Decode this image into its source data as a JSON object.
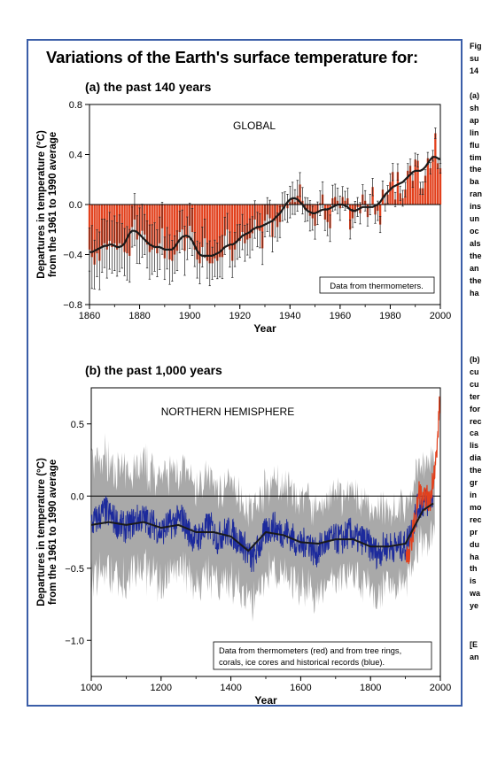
{
  "figure": {
    "title": "Variations of the Earth's surface temperature for:"
  },
  "side_text": {
    "caption_lines": [
      "Fig",
      "su",
      "14"
    ],
    "body_lines": [
      "(a)",
      "sh",
      "ap",
      "lin",
      "flu",
      "tim",
      "the",
      "ba",
      "ran",
      "ins",
      "un",
      "oc",
      "als",
      "the",
      "an",
      "the",
      "ha"
    ],
    "body_lines_b": [
      "(b)",
      "cu",
      "cu",
      "ter",
      "for",
      "rec",
      "ca",
      "lis",
      "dia",
      "the",
      "gr",
      "in",
      "mo",
      "rec",
      "pr",
      "du",
      "ha",
      "th",
      "is",
      "wa",
      "ye"
    ],
    "footer_lines": [
      "[E",
      "an"
    ]
  },
  "chart_data": [
    {
      "type": "bar",
      "subtitle": "(a) the past 140 years",
      "region_label": "GLOBAL",
      "xlabel": "Year",
      "ylabel_line1": "Departures in temperature (°C)",
      "ylabel_line2": "from the 1961 to 1990 average",
      "xlim": [
        1860,
        2000
      ],
      "ylim": [
        -0.8,
        0.8
      ],
      "x_ticks": [
        1860,
        1880,
        1900,
        1920,
        1940,
        1960,
        1980,
        2000
      ],
      "y_ticks": [
        "0.8",
        "0.4",
        "0.0",
        "−0.4",
        "−0.8"
      ],
      "y_tick_values": [
        0.8,
        0.4,
        0.0,
        -0.4,
        -0.8
      ],
      "legend": "Data from thermometers.",
      "grid": false,
      "colors": {
        "bars": "#e2401c",
        "trend": "#1a1a1a",
        "errorbars": "#222222",
        "zero_line": "#000000"
      },
      "x": [
        1860,
        1861,
        1862,
        1863,
        1864,
        1865,
        1866,
        1867,
        1868,
        1869,
        1870,
        1871,
        1872,
        1873,
        1874,
        1875,
        1876,
        1877,
        1878,
        1879,
        1880,
        1881,
        1882,
        1883,
        1884,
        1885,
        1886,
        1887,
        1888,
        1889,
        1890,
        1891,
        1892,
        1893,
        1894,
        1895,
        1896,
        1897,
        1898,
        1899,
        1900,
        1901,
        1902,
        1903,
        1904,
        1905,
        1906,
        1907,
        1908,
        1909,
        1910,
        1911,
        1912,
        1913,
        1914,
        1915,
        1916,
        1917,
        1918,
        1919,
        1920,
        1921,
        1922,
        1923,
        1924,
        1925,
        1926,
        1927,
        1928,
        1929,
        1930,
        1931,
        1932,
        1933,
        1934,
        1935,
        1936,
        1937,
        1938,
        1939,
        1940,
        1941,
        1942,
        1943,
        1944,
        1945,
        1946,
        1947,
        1948,
        1949,
        1950,
        1951,
        1952,
        1953,
        1954,
        1955,
        1956,
        1957,
        1958,
        1959,
        1960,
        1961,
        1962,
        1963,
        1964,
        1965,
        1966,
        1967,
        1968,
        1969,
        1970,
        1971,
        1972,
        1973,
        1974,
        1975,
        1976,
        1977,
        1978,
        1979,
        1980,
        1981,
        1982,
        1983,
        1984,
        1985,
        1986,
        1987,
        1988,
        1989,
        1990,
        1991,
        1992,
        1993,
        1994,
        1995,
        1996,
        1997,
        1998,
        1999,
        2000
      ],
      "values": [
        -0.36,
        -0.42,
        -0.48,
        -0.39,
        -0.45,
        -0.33,
        -0.31,
        -0.36,
        -0.29,
        -0.34,
        -0.31,
        -0.36,
        -0.31,
        -0.33,
        -0.38,
        -0.39,
        -0.41,
        -0.18,
        -0.12,
        -0.28,
        -0.25,
        -0.21,
        -0.24,
        -0.32,
        -0.38,
        -0.36,
        -0.34,
        -0.39,
        -0.31,
        -0.19,
        -0.43,
        -0.35,
        -0.44,
        -0.45,
        -0.4,
        -0.37,
        -0.22,
        -0.2,
        -0.37,
        -0.27,
        -0.17,
        -0.22,
        -0.36,
        -0.44,
        -0.47,
        -0.34,
        -0.27,
        -0.45,
        -0.47,
        -0.47,
        -0.43,
        -0.45,
        -0.42,
        -0.42,
        -0.25,
        -0.2,
        -0.36,
        -0.45,
        -0.36,
        -0.3,
        -0.29,
        -0.22,
        -0.31,
        -0.28,
        -0.27,
        -0.23,
        -0.12,
        -0.2,
        -0.21,
        -0.35,
        -0.13,
        -0.08,
        -0.11,
        -0.26,
        -0.13,
        -0.18,
        -0.14,
        -0.02,
        -0.01,
        -0.03,
        0.02,
        0.05,
        0.02,
        0.07,
        0.16,
        0.03,
        -0.04,
        -0.04,
        -0.09,
        -0.11,
        -0.17,
        -0.07,
        0.01,
        0.08,
        -0.12,
        -0.14,
        -0.19,
        0.05,
        0.06,
        0.03,
        -0.03,
        0.06,
        0.03,
        0.05,
        -0.2,
        -0.11,
        -0.06,
        -0.02,
        -0.07,
        0.08,
        0.03,
        -0.1,
        0.0,
        0.14,
        -0.08,
        -0.05,
        -0.16,
        0.12,
        0.01,
        0.08,
        0.18,
        0.26,
        0.04,
        0.26,
        0.09,
        0.05,
        0.12,
        0.27,
        0.31,
        0.19,
        0.36,
        0.35,
        0.13,
        0.13,
        0.23,
        0.37,
        0.29,
        0.39,
        0.57,
        0.33,
        0.29
      ],
      "trend": [
        -0.38,
        -0.38,
        -0.37,
        -0.36,
        -0.35,
        -0.34,
        -0.33,
        -0.33,
        -0.32,
        -0.32,
        -0.33,
        -0.34,
        -0.34,
        -0.33,
        -0.31,
        -0.27,
        -0.23,
        -0.21,
        -0.21,
        -0.22,
        -0.24,
        -0.26,
        -0.28,
        -0.3,
        -0.32,
        -0.33,
        -0.34,
        -0.34,
        -0.34,
        -0.35,
        -0.36,
        -0.36,
        -0.36,
        -0.36,
        -0.34,
        -0.31,
        -0.28,
        -0.26,
        -0.25,
        -0.25,
        -0.26,
        -0.29,
        -0.33,
        -0.37,
        -0.4,
        -0.41,
        -0.41,
        -0.41,
        -0.41,
        -0.41,
        -0.4,
        -0.39,
        -0.38,
        -0.36,
        -0.34,
        -0.33,
        -0.32,
        -0.32,
        -0.31,
        -0.29,
        -0.27,
        -0.25,
        -0.24,
        -0.23,
        -0.22,
        -0.2,
        -0.19,
        -0.18,
        -0.18,
        -0.17,
        -0.16,
        -0.15,
        -0.14,
        -0.13,
        -0.11,
        -0.09,
        -0.07,
        -0.04,
        -0.01,
        0.02,
        0.04,
        0.05,
        0.05,
        0.04,
        0.02,
        0.0,
        -0.03,
        -0.05,
        -0.06,
        -0.07,
        -0.07,
        -0.06,
        -0.05,
        -0.04,
        -0.04,
        -0.04,
        -0.03,
        -0.02,
        -0.01,
        0.0,
        0.0,
        0.0,
        -0.01,
        -0.02,
        -0.04,
        -0.05,
        -0.05,
        -0.04,
        -0.03,
        -0.02,
        -0.02,
        -0.02,
        -0.02,
        -0.02,
        -0.01,
        0.0,
        0.02,
        0.05,
        0.08,
        0.1,
        0.12,
        0.14,
        0.15,
        0.16,
        0.17,
        0.18,
        0.2,
        0.22,
        0.24,
        0.26,
        0.27,
        0.27,
        0.27,
        0.28,
        0.3,
        0.33,
        0.36,
        0.38,
        0.38,
        0.37,
        0.36
      ],
      "error_halfwidth_range": [
        0.04,
        0.26
      ]
    },
    {
      "type": "line",
      "subtitle": "(b) the past 1,000 years",
      "region_label": "NORTHERN HEMISPHERE",
      "xlabel": "Year",
      "ylabel_line1": "Departures in temperature (°C)",
      "ylabel_line2": "from the 1961 to 1990 average",
      "xlim": [
        1000,
        2000
      ],
      "ylim": [
        -1.25,
        0.75
      ],
      "x_ticks": [
        1000,
        1200,
        1400,
        1600,
        1800,
        2000
      ],
      "y_ticks": [
        "0.5",
        "0.0",
        "−0.5",
        "−1.0"
      ],
      "y_tick_values": [
        0.5,
        0.0,
        -0.5,
        -1.0
      ],
      "legend_line1": "Data from thermometers (red) and from tree rings,",
      "legend_line2": "corals, ice cores and historical records (blue).",
      "grid": false,
      "colors": {
        "proxy": "#1c2a9c",
        "instrumental": "#e2401c",
        "uncertainty": "#8c8c8c",
        "trend": "#1a1a1a",
        "zero_line": "#000000"
      },
      "series": [
        {
          "name": "proxy (blue)",
          "x": [
            1000,
            1020,
            1040,
            1060,
            1080,
            1100,
            1120,
            1140,
            1160,
            1180,
            1200,
            1220,
            1240,
            1260,
            1280,
            1300,
            1320,
            1340,
            1360,
            1380,
            1400,
            1420,
            1440,
            1460,
            1480,
            1500,
            1520,
            1540,
            1560,
            1580,
            1600,
            1620,
            1640,
            1660,
            1680,
            1700,
            1720,
            1740,
            1760,
            1780,
            1800,
            1820,
            1840,
            1860,
            1880,
            1900,
            1920,
            1940,
            1960,
            1980
          ],
          "values": [
            -0.2,
            -0.15,
            -0.1,
            -0.15,
            -0.2,
            -0.22,
            -0.18,
            -0.15,
            -0.17,
            -0.2,
            -0.25,
            -0.2,
            -0.18,
            -0.15,
            -0.25,
            -0.3,
            -0.25,
            -0.2,
            -0.3,
            -0.25,
            -0.25,
            -0.3,
            -0.35,
            -0.45,
            -0.35,
            -0.25,
            -0.2,
            -0.25,
            -0.25,
            -0.3,
            -0.35,
            -0.3,
            -0.4,
            -0.35,
            -0.3,
            -0.3,
            -0.3,
            -0.25,
            -0.3,
            -0.3,
            -0.35,
            -0.4,
            -0.35,
            -0.35,
            -0.35,
            -0.35,
            -0.2,
            -0.05,
            -0.05,
            0.0
          ]
        },
        {
          "name": "instrumental (red)",
          "x": [
            1900,
            1910,
            1920,
            1930,
            1940,
            1950,
            1960,
            1970,
            1980,
            1990,
            1998
          ],
          "values": [
            -0.35,
            -0.45,
            -0.25,
            -0.15,
            0.05,
            -0.05,
            0.0,
            -0.05,
            0.15,
            0.3,
            0.65
          ]
        },
        {
          "name": "50-year trend",
          "x": [
            1000,
            1050,
            1100,
            1150,
            1200,
            1250,
            1300,
            1350,
            1400,
            1450,
            1500,
            1550,
            1600,
            1650,
            1700,
            1750,
            1800,
            1850,
            1900,
            1950,
            1980
          ],
          "values": [
            -0.2,
            -0.18,
            -0.2,
            -0.18,
            -0.22,
            -0.2,
            -0.25,
            -0.25,
            -0.28,
            -0.38,
            -0.25,
            -0.27,
            -0.32,
            -0.33,
            -0.3,
            -0.3,
            -0.35,
            -0.35,
            -0.33,
            -0.1,
            -0.05
          ]
        }
      ],
      "uncertainty_halfwidth_range": [
        0.3,
        0.45
      ]
    }
  ]
}
